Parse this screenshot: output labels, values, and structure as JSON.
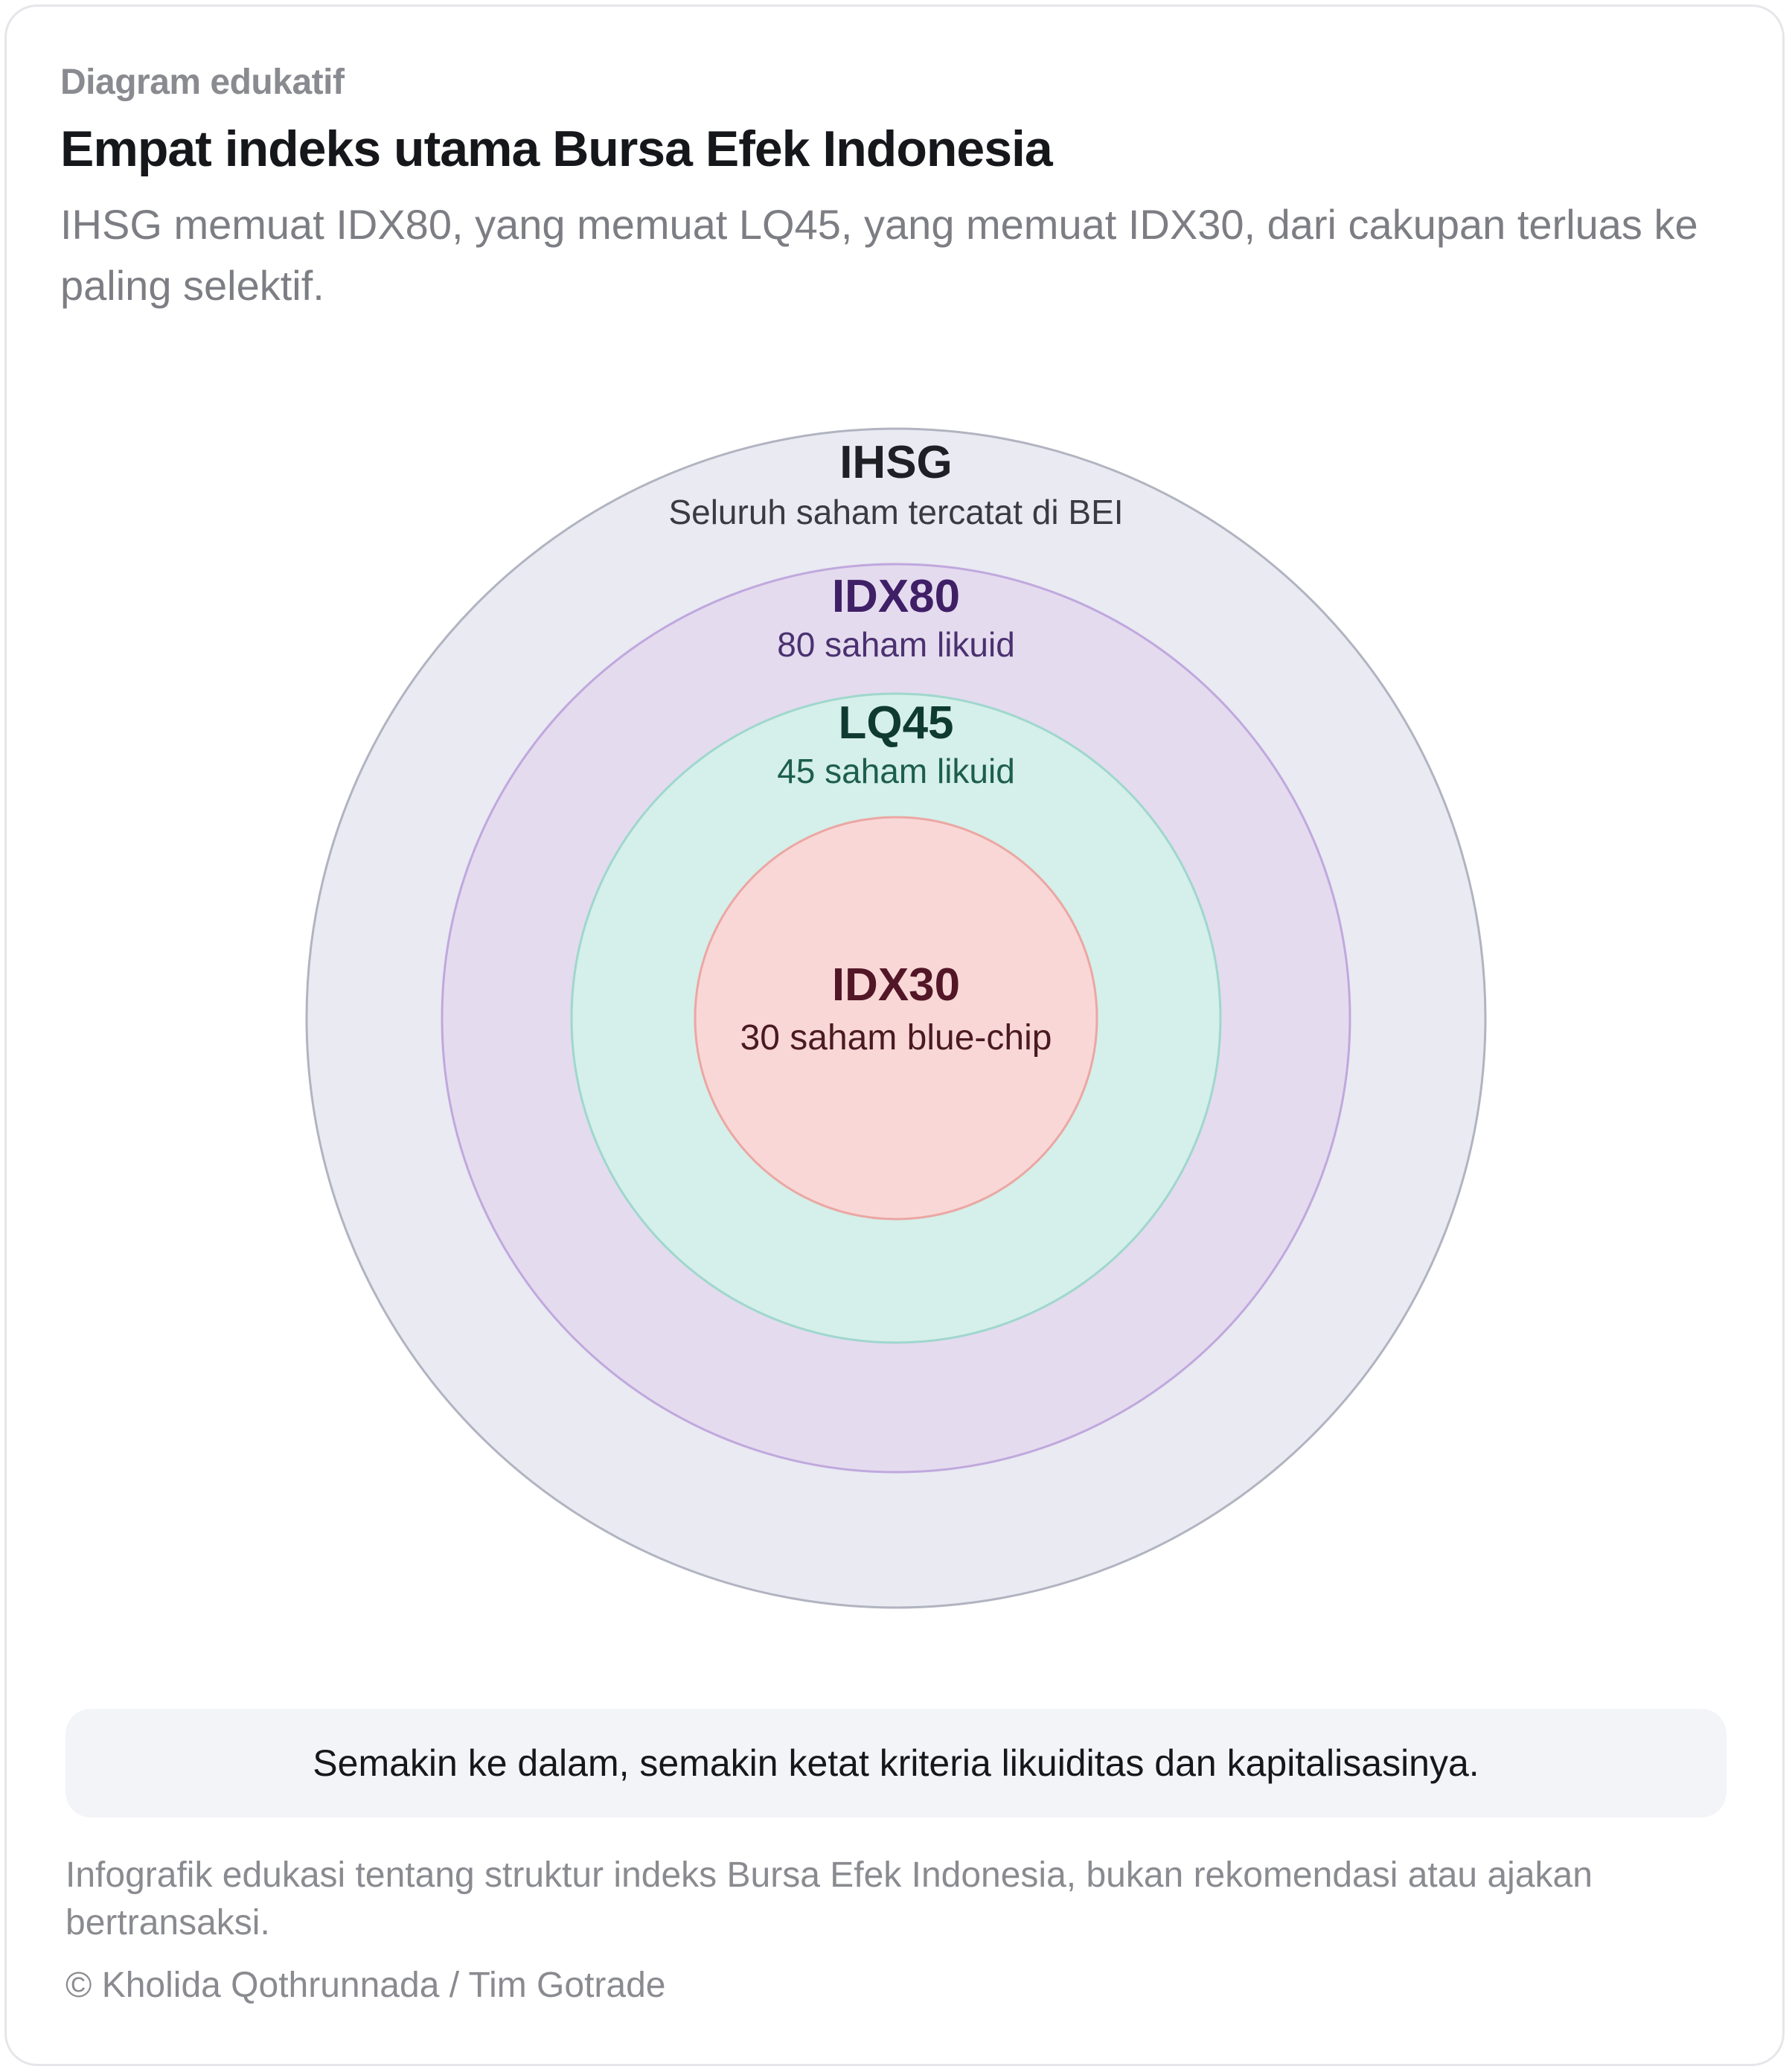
{
  "header": {
    "eyebrow": "Diagram edukatif",
    "title": "Empat indeks utama Bursa Efek Indonesia",
    "subtitle": "IHSG memuat IDX80, yang memuat LQ45, yang memuat IDX30, dari cakupan terluas ke paling selektif."
  },
  "rings": [
    {
      "name": "IHSG",
      "desc": "Seluruh saham tercatat di BEI",
      "fill": "#e9eaf2",
      "stroke": "#b1b4c0",
      "name_color": "#1f2026",
      "desc_color": "#3a3b42"
    },
    {
      "name": "IDX80",
      "desc": "80 saham likuid",
      "fill": "#e4dbef",
      "stroke": "#c0a8dd",
      "name_color": "#3f1f66",
      "desc_color": "#4b3170"
    },
    {
      "name": "LQ45",
      "desc": "45 saham likuid",
      "fill": "#d5efea",
      "stroke": "#9fd7cd",
      "name_color": "#0f3a31",
      "desc_color": "#1d5e4e"
    },
    {
      "name": "IDX30",
      "desc": "30 saham blue-chip",
      "fill": "#f9d7d7",
      "stroke": "#eba7a3",
      "name_color": "#521626",
      "desc_color": "#4a1a22"
    }
  ],
  "note": "Semakin ke dalam, semakin ketat kriteria likuiditas dan kapitalisasinya.",
  "disclaimer": "Infografik edukasi tentang struktur indeks Bursa Efek Indonesia, bukan rekomendasi atau ajakan bertransaksi.",
  "credit": "© Kholida Qothrunnada / Tim Gotrade"
}
